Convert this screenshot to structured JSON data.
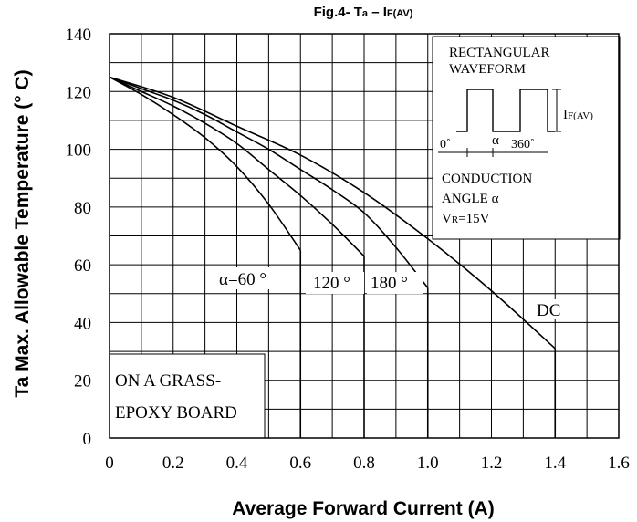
{
  "chart_data": {
    "type": "line",
    "title_main": "Fig.4- T",
    "title_sub_a": "a",
    "title_dash": " – I",
    "title_sub_f": "F(AV)",
    "xlabel": "Average Forward Current (A)",
    "ylabel": "Ta Max. Allowable Temperature (° C)",
    "xlim": [
      0,
      1.6
    ],
    "ylim": [
      0,
      140
    ],
    "x_ticks": [
      "0",
      "0.2",
      "0.4",
      "0.6",
      "0.8",
      "1.0",
      "1.2",
      "1.4",
      "1.6"
    ],
    "y_ticks": [
      "0",
      "20",
      "40",
      "60",
      "80",
      "100",
      "120",
      "140"
    ],
    "grid": true,
    "series": [
      {
        "name": "α=60 °",
        "x": [
          0,
          0.1,
          0.2,
          0.3,
          0.4,
          0.5,
          0.6
        ],
        "y": [
          125,
          119,
          112,
          104,
          94,
          81,
          65
        ],
        "cutoff": 0.6
      },
      {
        "name": "120 °",
        "x": [
          0,
          0.1,
          0.2,
          0.3,
          0.4,
          0.5,
          0.6,
          0.7,
          0.8
        ],
        "y": [
          125,
          120,
          115,
          109,
          102,
          93,
          84,
          74,
          63
        ],
        "cutoff": 0.8
      },
      {
        "name": "180 °",
        "x": [
          0,
          0.1,
          0.2,
          0.3,
          0.4,
          0.5,
          0.6,
          0.7,
          0.8,
          0.9,
          1.0
        ],
        "y": [
          125,
          121,
          117,
          112,
          106,
          100,
          93,
          86,
          78,
          66,
          52
        ],
        "cutoff": 1.0
      },
      {
        "name": "DC",
        "x": [
          0,
          0.2,
          0.4,
          0.6,
          0.8,
          1.0,
          1.2,
          1.4
        ],
        "y": [
          125,
          118,
          108,
          98,
          85,
          69,
          51,
          31
        ],
        "cutoff": 1.4
      }
    ],
    "inset": {
      "line1": "RECTANGULAR",
      "line2": "WAVEFORM",
      "current_main": "I",
      "current_sub": "F(AV)",
      "deg0": "0˚",
      "alpha": "α",
      "deg360": "360˚",
      "line3": "CONDUCTION",
      "line4": "ANGLE α",
      "vr_main": "V",
      "vr_sub": "R",
      "vr_rest": "=15V"
    },
    "board_note": [
      "ON A GRASS-",
      "EPOXY BOARD"
    ]
  }
}
